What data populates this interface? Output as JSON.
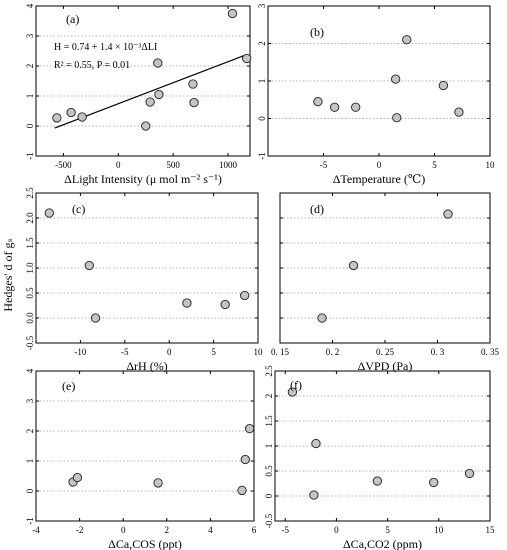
{
  "figure": {
    "shared_ylabel": "Hedges' d of gₛ"
  },
  "chart_data": [
    {
      "type": "scatter",
      "panel_label": "(a)",
      "xlabel": "ΔLight Intensity (μ mol m⁻² s⁻¹)",
      "ylabel": "",
      "xlim": [
        -750,
        1200
      ],
      "ylim": [
        -1,
        4
      ],
      "xticks": [
        -500,
        0,
        500,
        1000
      ],
      "yticks": [
        -1,
        0,
        1,
        2,
        3,
        4
      ],
      "grid": "horizontal-dotted",
      "points": [
        [
          -560,
          0.27
        ],
        [
          -430,
          0.45
        ],
        [
          -330,
          0.3
        ],
        [
          250,
          0.0
        ],
        [
          290,
          0.8
        ],
        [
          360,
          2.1
        ],
        [
          370,
          1.05
        ],
        [
          680,
          1.4
        ],
        [
          690,
          0.78
        ],
        [
          1040,
          3.75
        ],
        [
          1170,
          2.25
        ]
      ],
      "fit_line": {
        "x": [
          -580,
          1170
        ],
        "y": [
          -0.07,
          2.38
        ]
      },
      "annotations": [
        "H = 0.74 + 1.4 × 10⁻³ΔLI",
        "R² = 0.55, P = 0.01"
      ]
    },
    {
      "type": "scatter",
      "panel_label": "(b)",
      "xlabel": "ΔTemperature (℃)",
      "ylabel": "",
      "xlim": [
        -10,
        10
      ],
      "ylim": [
        -1,
        3
      ],
      "xticks": [
        -5,
        0,
        5,
        10
      ],
      "yticks": [
        -1,
        0,
        1,
        2,
        3
      ],
      "grid": "horizontal-dotted",
      "points": [
        [
          -5.5,
          0.45
        ],
        [
          -4,
          0.3
        ],
        [
          -2.1,
          0.3
        ],
        [
          1.5,
          1.05
        ],
        [
          1.6,
          0.02
        ],
        [
          2.5,
          2.1
        ],
        [
          5.8,
          0.88
        ],
        [
          7.2,
          0.17
        ]
      ]
    },
    {
      "type": "scatter",
      "panel_label": "(c)",
      "xlabel": "ΔrH  (%)",
      "ylabel": "",
      "xlim": [
        -15,
        10
      ],
      "ylim": [
        -0.5,
        2.5
      ],
      "xticks": [
        -10,
        -5,
        0,
        5,
        10
      ],
      "yticks": [
        -0.5,
        0.0,
        0.5,
        1.0,
        1.5,
        2.0,
        2.5
      ],
      "ytick_labels": [
        "-0.5",
        "0.0",
        "0.5",
        "1.0",
        "1.5",
        "2.0",
        "2.5"
      ],
      "grid": "horizontal-dotted",
      "points": [
        [
          -13.5,
          2.1
        ],
        [
          -9,
          1.05
        ],
        [
          -8.3,
          0.0
        ],
        [
          2,
          0.3
        ],
        [
          6.3,
          0.27
        ],
        [
          8.5,
          0.45
        ]
      ]
    },
    {
      "type": "scatter",
      "panel_label": "(d)",
      "xlabel": "ΔVPD  (Pa)",
      "ylabel": "",
      "xlim": [
        0.15,
        0.35
      ],
      "ylim": [
        -0.5,
        2.5
      ],
      "xticks": [
        0.15,
        0.2,
        0.25,
        0.3,
        0.35
      ],
      "xtick_labels": [
        "0. 15",
        "0. 2",
        "0. 25",
        "0. 3",
        "0. 35"
      ],
      "yticks": [
        -0.5,
        0.0,
        0.5,
        1.0,
        1.5,
        2.0,
        2.5
      ],
      "show_yticklabels": false,
      "grid": "horizontal-dotted",
      "points": [
        [
          0.19,
          0.0
        ],
        [
          0.22,
          1.05
        ],
        [
          0.31,
          2.08
        ]
      ]
    },
    {
      "type": "scatter",
      "panel_label": "(e)",
      "xlabel": "ΔCa,COS (ppt)",
      "ylabel": "",
      "xlim": [
        -4,
        6
      ],
      "ylim": [
        -1,
        4
      ],
      "xticks": [
        -4,
        -2,
        0,
        2,
        4,
        6
      ],
      "yticks": [
        -1,
        0,
        1,
        2,
        3,
        4
      ],
      "grid": "horizontal-dotted",
      "points": [
        [
          -2.3,
          0.3
        ],
        [
          -2.1,
          0.45
        ],
        [
          1.6,
          0.27
        ],
        [
          5.45,
          0.02
        ],
        [
          5.6,
          1.05
        ],
        [
          5.8,
          2.08
        ]
      ]
    },
    {
      "type": "scatter",
      "panel_label": "(f)",
      "xlabel": "ΔCa,CO2 (ppm)",
      "ylabel": "",
      "xlim": [
        -6,
        15
      ],
      "ylim": [
        -0.5,
        2.5
      ],
      "xticks": [
        -5,
        0,
        5,
        10,
        15
      ],
      "yticks": [
        -0.5,
        0,
        0.5,
        1,
        1.5,
        2,
        2.5
      ],
      "ytick_labels": [
        "-0.5",
        "0",
        "0.5",
        "1",
        "1.5",
        "2",
        "2.5"
      ],
      "grid": "horizontal-dotted",
      "points": [
        [
          -4.3,
          2.08
        ],
        [
          -2,
          1.05
        ],
        [
          -2.2,
          0.02
        ],
        [
          4,
          0.3
        ],
        [
          9.5,
          0.27
        ],
        [
          13,
          0.45
        ]
      ]
    }
  ]
}
